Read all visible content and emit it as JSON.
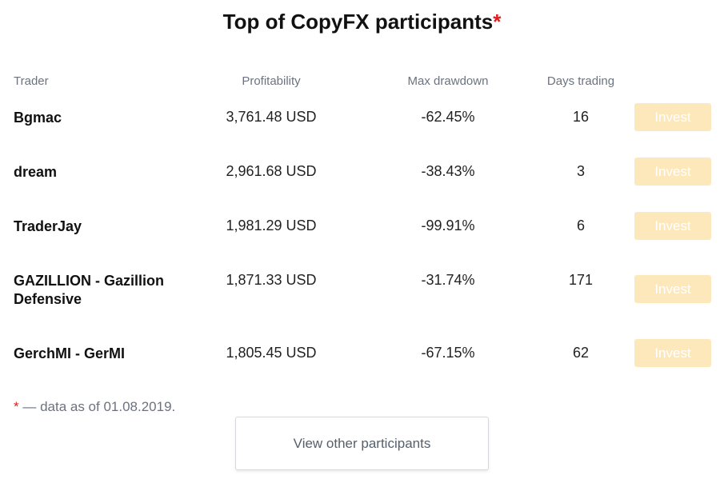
{
  "page": {
    "title": "Top of CopyFX participants",
    "title_marker": "*",
    "accent_color": "#e11b1b",
    "invest_button_color": "#fde8bb"
  },
  "table": {
    "headers": {
      "trader": "Trader",
      "profitability": "Profitability",
      "max_drawdown": "Max drawdown",
      "days_trading": "Days trading"
    },
    "rows": [
      {
        "trader": "Bgmac",
        "profitability": "3,761.48 USD",
        "max_drawdown": "-62.45%",
        "days_trading": "16",
        "action": "Invest"
      },
      {
        "trader": "dream",
        "profitability": "2,961.68 USD",
        "max_drawdown": "-38.43%",
        "days_trading": "3",
        "action": "Invest"
      },
      {
        "trader": "TraderJay",
        "profitability": "1,981.29 USD",
        "max_drawdown": "-99.91%",
        "days_trading": "6",
        "action": "Invest"
      },
      {
        "trader": "GAZILLION - Gazillion Defensive",
        "profitability": "1,871.33 USD",
        "max_drawdown": "-31.74%",
        "days_trading": "171",
        "action": "Invest"
      },
      {
        "trader": "GerchMI - GerMI",
        "profitability": "1,805.45 USD",
        "max_drawdown": "-67.15%",
        "days_trading": "62",
        "action": "Invest"
      }
    ]
  },
  "footnote": {
    "marker": "*",
    "text": " — data as of 01.08.2019."
  },
  "view_other_label": "View other participants"
}
